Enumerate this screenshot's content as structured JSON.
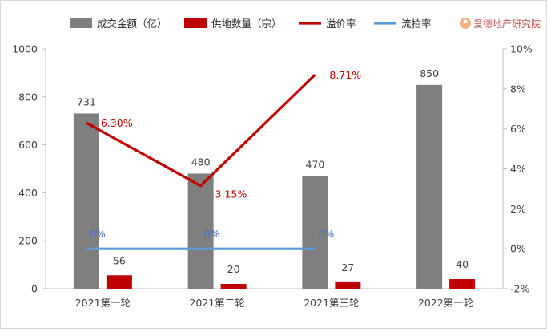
{
  "watermark": "爱德地产研究院",
  "chart_data": {
    "type": "bar",
    "categories": [
      "2021第一轮",
      "2021第二轮",
      "2021第三轮",
      "2022第一轮"
    ],
    "series": [
      {
        "name": "成交金额（亿）",
        "type": "bar",
        "axis": "left",
        "color": "#7f7f7f",
        "values": [
          731,
          480,
          470,
          850
        ],
        "labels": [
          "731",
          "480",
          "470",
          "850"
        ]
      },
      {
        "name": "供地数量（宗）",
        "type": "bar",
        "axis": "left",
        "color": "#c00000",
        "values": [
          56,
          20,
          27,
          40
        ],
        "labels": [
          "56",
          "20",
          "27",
          "40"
        ]
      },
      {
        "name": "溢价率",
        "type": "line",
        "axis": "right",
        "color": "#c00000",
        "values": [
          6.3,
          3.15,
          8.71,
          null
        ],
        "labels": [
          "6.30%",
          "3.15%",
          "8.71%",
          null
        ]
      },
      {
        "name": "流拍率",
        "type": "line",
        "axis": "right",
        "color": "#5b9bd5",
        "values": [
          0,
          0,
          0,
          null
        ],
        "labels": [
          "0%",
          "0%",
          "0%",
          null
        ]
      }
    ],
    "y_left": {
      "min": 0,
      "max": 1000,
      "ticks": [
        "0",
        "200",
        "400",
        "600",
        "800",
        "1000"
      ]
    },
    "y_right": {
      "min": -2,
      "max": 10,
      "ticks": [
        "-2%",
        "0%",
        "2%",
        "4%",
        "6%",
        "8%",
        "10%"
      ]
    },
    "legend_position": "top",
    "grid": false
  }
}
